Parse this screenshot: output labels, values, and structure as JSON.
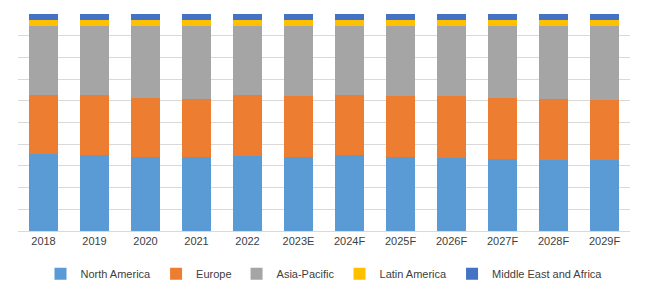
{
  "chart_data": {
    "type": "bar",
    "stacked": true,
    "grid": true,
    "legend": "bottom",
    "tick_labels": "x",
    "categories": [
      "2018",
      "2019",
      "2020",
      "2021",
      "2022",
      "2023E",
      "2024F",
      "2025F",
      "2026F",
      "2027F",
      "2028F",
      "2029F"
    ],
    "ylim": [
      0,
      100
    ],
    "yticks": [
      0,
      10,
      20,
      30,
      40,
      50,
      60,
      70,
      80,
      90,
      100
    ],
    "series": [
      {
        "name": "North America",
        "color": "#5b9bd5",
        "values": [
          35.5,
          35,
          34,
          34,
          34.5,
          34,
          35,
          34,
          33.5,
          33,
          32.5,
          32.5
        ]
      },
      {
        "name": "Europe",
        "color": "#ed7d31",
        "values": [
          27,
          27.5,
          27.5,
          27,
          28,
          28,
          27.5,
          28,
          28.5,
          28.5,
          28.5,
          28
        ]
      },
      {
        "name": "Asia-Pacific",
        "color": "#a5a5a5",
        "values": [
          32,
          32,
          33,
          33.5,
          32,
          32.5,
          32,
          32.5,
          32.5,
          33,
          33.5,
          34
        ]
      },
      {
        "name": "Latin America",
        "color": "#ffc000",
        "values": [
          2.8,
          2.8,
          2.8,
          2.8,
          2.8,
          2.8,
          2.8,
          2.8,
          2.8,
          2.8,
          2.8,
          2.8
        ]
      },
      {
        "name": "Middle East and Africa",
        "color": "#4472c4",
        "values": [
          2.7,
          2.7,
          2.7,
          2.7,
          2.7,
          2.7,
          2.7,
          2.7,
          2.7,
          2.7,
          2.7,
          2.7
        ]
      }
    ]
  }
}
